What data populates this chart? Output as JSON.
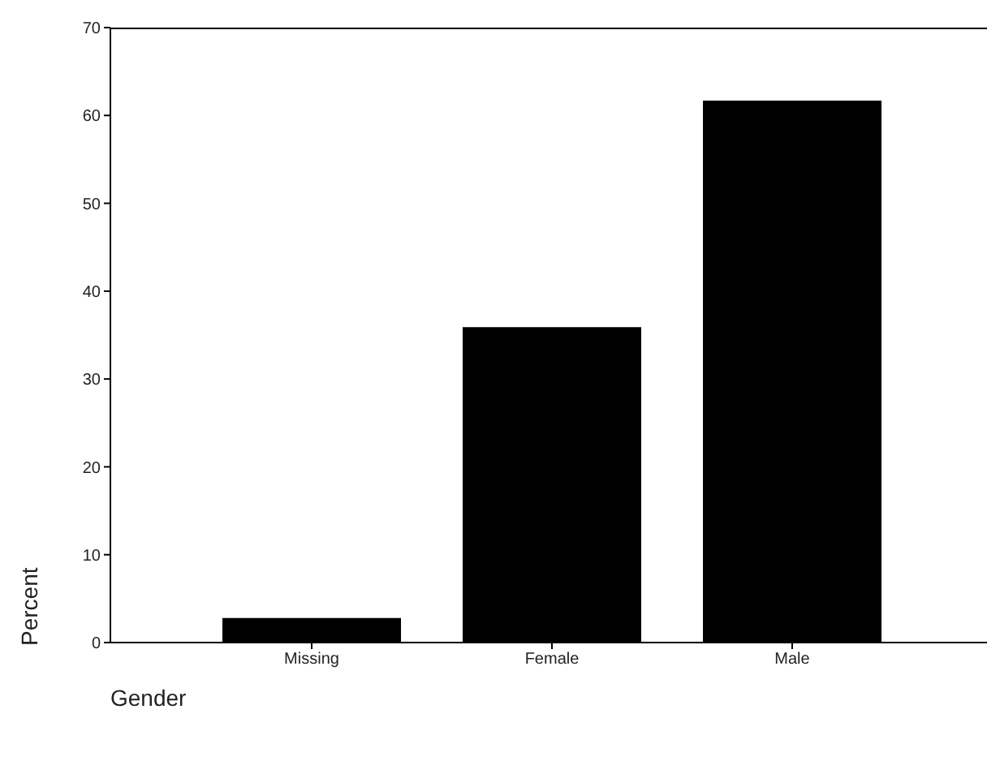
{
  "chart_data": {
    "type": "bar",
    "xlabel": "Gender",
    "ylabel": "Percent",
    "categories": [
      "Missing",
      "Female",
      "Male"
    ],
    "values": [
      2.8,
      35.9,
      61.7
    ],
    "color": "#000000",
    "ylim": [
      0,
      70
    ],
    "yticks": [
      0,
      10,
      20,
      30,
      40,
      50,
      60,
      70
    ],
    "grid": false
  }
}
